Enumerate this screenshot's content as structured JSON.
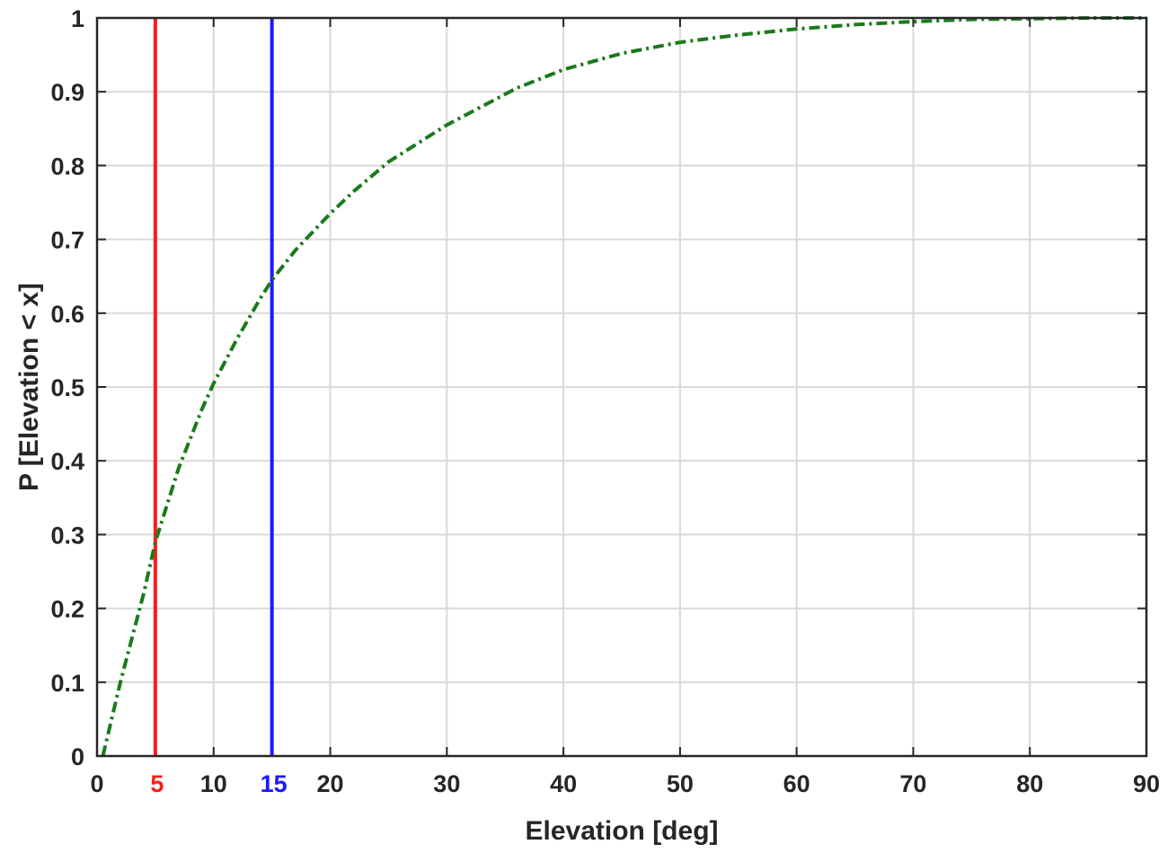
{
  "chart_data": {
    "type": "line",
    "title": "",
    "xlabel": "Elevation  [deg]",
    "ylabel": "P [Elevation < x]",
    "xlim": [
      0,
      90
    ],
    "ylim": [
      0,
      1
    ],
    "grid": true,
    "xticks": [
      0,
      10,
      20,
      30,
      40,
      50,
      60,
      70,
      80,
      90
    ],
    "yticks": [
      0,
      0.1,
      0.2,
      0.3,
      0.4,
      0.5,
      0.6,
      0.7,
      0.8,
      0.9,
      1
    ],
    "series": [
      {
        "color": "#1a7a1a",
        "style": "dash-dot",
        "x": [
          0.5,
          2,
          3,
          4,
          5,
          6,
          7,
          8,
          9,
          10,
          12,
          14,
          15,
          17,
          20,
          22,
          25,
          28,
          30,
          33,
          36,
          40,
          45,
          50,
          55,
          60,
          65,
          70,
          75,
          80,
          85,
          90
        ],
        "y": [
          0.0,
          0.1,
          0.16,
          0.22,
          0.29,
          0.34,
          0.39,
          0.43,
          0.47,
          0.505,
          0.565,
          0.62,
          0.645,
          0.685,
          0.735,
          0.765,
          0.805,
          0.835,
          0.855,
          0.88,
          0.905,
          0.93,
          0.952,
          0.967,
          0.977,
          0.985,
          0.991,
          0.995,
          0.998,
          0.999,
          1.0,
          1.0
        ]
      }
    ],
    "vlines": [
      {
        "x": 5,
        "color": "#ff1a1a",
        "label": "5"
      },
      {
        "x": 15,
        "color": "#1a1aff",
        "label": "15"
      }
    ]
  }
}
